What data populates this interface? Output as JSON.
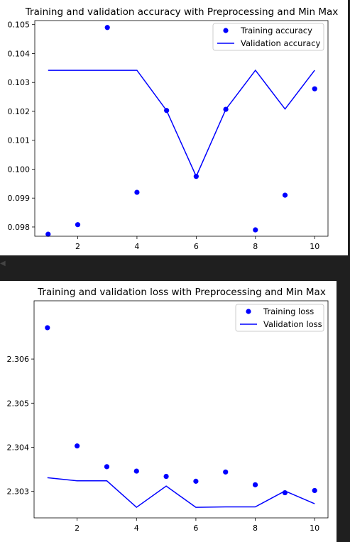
{
  "chart_data": [
    {
      "type": "line",
      "title": "Training and validation accuracy with Preprocessing and Min Max",
      "xlabel": "",
      "ylabel": "",
      "x": [
        1,
        2,
        3,
        4,
        5,
        6,
        7,
        8,
        9,
        10
      ],
      "xlim": [
        0.55,
        10.45
      ],
      "ylim": [
        0.09768,
        0.10514
      ],
      "xticks": [
        2,
        4,
        6,
        8,
        10
      ],
      "yticks": [
        0.098,
        0.099,
        0.1,
        0.101,
        0.102,
        0.103,
        0.104,
        0.105
      ],
      "ytick_labels": [
        "0.098",
        "0.099",
        "0.100",
        "0.101",
        "0.102",
        "0.103",
        "0.104",
        "0.105"
      ],
      "legend_position": "top-right",
      "grid": false,
      "series": [
        {
          "name": "Training accuracy",
          "style": "points",
          "color": "#0000ff",
          "values": [
            0.09775,
            0.09808,
            0.1049,
            0.0992,
            0.10203,
            0.09975,
            0.10207,
            0.0979,
            0.0991,
            0.10278
          ]
        },
        {
          "name": "Validation accuracy",
          "style": "line",
          "color": "#0000ff",
          "values": [
            0.10342,
            0.10342,
            0.10342,
            0.10342,
            0.10203,
            0.09975,
            0.10207,
            0.10342,
            0.10208,
            0.10342
          ]
        }
      ]
    },
    {
      "type": "line",
      "title": "Training and validation loss with Preprocessing and Min Max",
      "xlabel": "",
      "ylabel": "",
      "x": [
        1,
        2,
        3,
        4,
        5,
        6,
        7,
        8,
        9,
        10
      ],
      "xlim": [
        0.55,
        10.45
      ],
      "ylim": [
        2.3024,
        2.30732
      ],
      "xticks": [
        2,
        4,
        6,
        8,
        10
      ],
      "yticks": [
        2.303,
        2.304,
        2.305,
        2.306
      ],
      "ytick_labels": [
        "2.303",
        "2.304",
        "2.305",
        "2.306"
      ],
      "legend_position": "top-right",
      "grid": false,
      "series": [
        {
          "name": "Training loss",
          "style": "points",
          "color": "#0000ff",
          "values": [
            2.30671,
            2.30403,
            2.30356,
            2.30346,
            2.30334,
            2.30323,
            2.30344,
            2.30315,
            2.30297,
            2.30302
          ]
        },
        {
          "name": "Validation loss",
          "style": "line",
          "color": "#0000ff",
          "values": [
            2.30331,
            2.30324,
            2.30324,
            2.30264,
            2.30312,
            2.30264,
            2.30265,
            2.30265,
            2.30301,
            2.30272
          ]
        }
      ]
    }
  ]
}
